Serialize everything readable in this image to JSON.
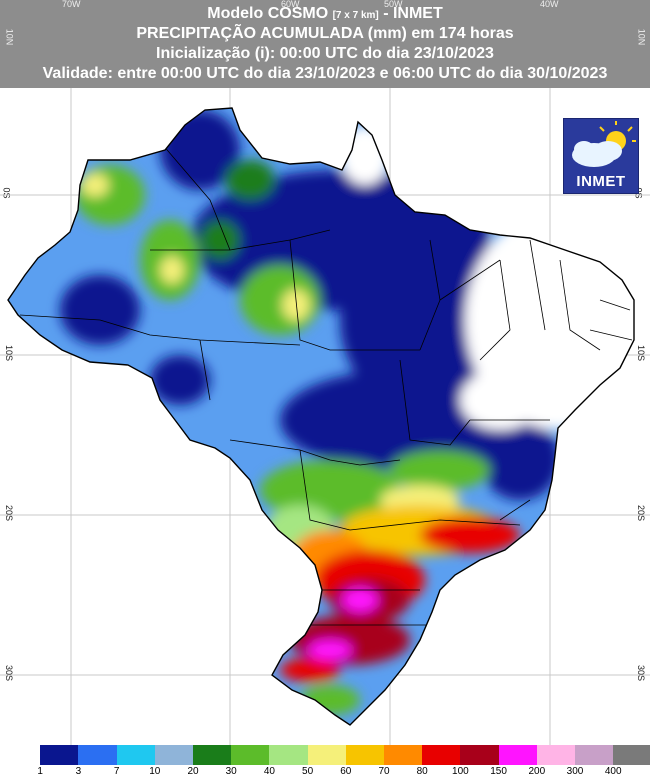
{
  "header": {
    "line1_main": "Modelo COSMO",
    "line1_small": "[7 x 7 km]",
    "line1_tail": "- INMET",
    "line2": "PRECIPITAÇÃO ACUMULADA (mm) em 174 horas",
    "line3": "Inicialização (i): 00:00 UTC do dia 23/10/2023",
    "line4": "Validade: entre 00:00 UTC do dia 23/10/2023 e 06:00 UTC do dia 30/10/2023"
  },
  "logo": {
    "text": "INMET",
    "icon": "cloud-sun-icon"
  },
  "longitudes": [
    "70W",
    "60W",
    "50W",
    "40W"
  ],
  "latitudes_left": [
    "10N",
    "0S",
    "10S",
    "20S",
    "30S"
  ],
  "latitudes_right": [
    "10N",
    "0S",
    "10S",
    "20S",
    "30S"
  ],
  "legend": {
    "colors": [
      "#ffffff",
      "#0a168f",
      "#2b6ff2",
      "#1fc8f0",
      "#8fb4d9",
      "#1a7d1a",
      "#5cbc2a",
      "#a5e682",
      "#f5f07a",
      "#f7c400",
      "#ff8a00",
      "#e80000",
      "#a8001a",
      "#ff14ff",
      "#ffb4e6",
      "#c8a0c8",
      "#7a7a7a"
    ],
    "ticks": [
      "1",
      "3",
      "7",
      "10",
      "20",
      "30",
      "40",
      "50",
      "60",
      "70",
      "80",
      "100",
      "150",
      "200",
      "300",
      "400"
    ]
  }
}
